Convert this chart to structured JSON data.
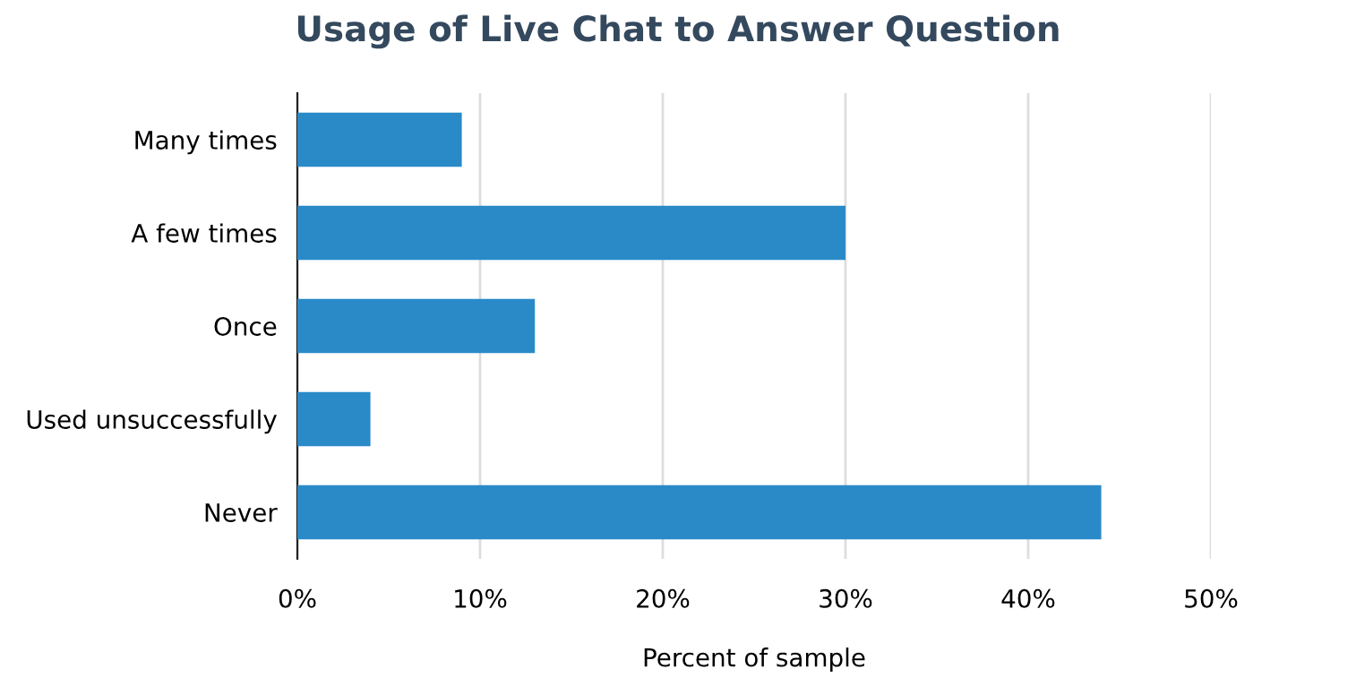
{
  "chart_data": {
    "type": "bar",
    "orientation": "horizontal",
    "title": "Usage of Live Chat to Answer Question",
    "xlabel": "Percent of sample",
    "categories": [
      "Many times",
      "A few times",
      "Once",
      "Used unsuccessfully",
      "Never"
    ],
    "values": [
      9,
      30,
      13,
      4,
      44
    ],
    "color": "#2a8ac8",
    "xlim": [
      0,
      50
    ],
    "xticks": [
      {
        "value": 0,
        "label": "0%"
      },
      {
        "value": 10,
        "label": "10%"
      },
      {
        "value": 20,
        "label": "20%"
      },
      {
        "value": 30,
        "label": "30%"
      },
      {
        "value": 40,
        "label": "40%"
      },
      {
        "value": 50,
        "label": "50%"
      }
    ],
    "grid": "x"
  }
}
